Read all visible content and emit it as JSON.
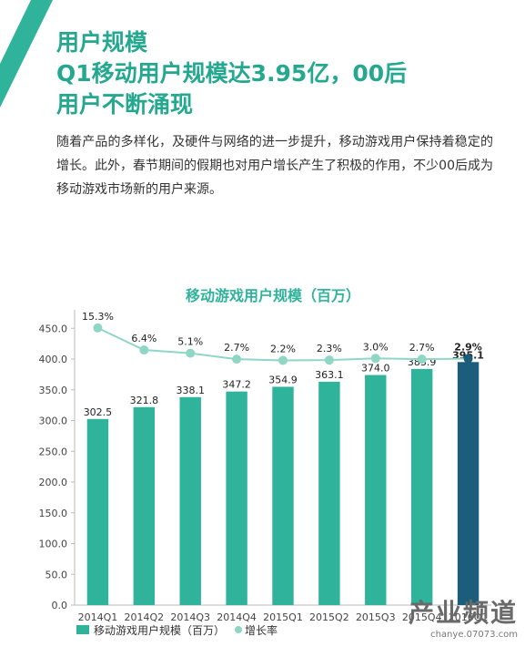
{
  "header": {
    "title_line1": "用户规模",
    "title_line2": "Q1移动用户规模达3.95亿，00后",
    "title_line3": "用户不断涌现"
  },
  "body": {
    "paragraph": "随着产品的多样化，及硬件与网络的进一步提升，移动游戏用户保持着稳定的增长。此外，春节期间的假期也对用户增长产生了积极的作用，不少00后成为移动游戏市场新的用户来源。"
  },
  "watermark": {
    "brand": "产业频道",
    "url": "chanye.07073.com"
  },
  "colors": {
    "accent": "#2fb39b",
    "bar": "#2fb39b",
    "highlight_bar": "#1b5d7a",
    "line": "#8fd6c6"
  },
  "chart_data": {
    "type": "bar",
    "title": "移动游戏用户规模（百万）",
    "categories": [
      "2014Q1",
      "2014Q2",
      "2014Q3",
      "2014Q4",
      "2015Q1",
      "2015Q2",
      "2015Q3",
      "2015Q4",
      "2016Q1"
    ],
    "y_ticks": [
      "0.0",
      "50.0",
      "100.0",
      "150.0",
      "200.0",
      "250.0",
      "300.0",
      "350.0",
      "400.0",
      "450.0"
    ],
    "ylim": [
      0,
      480
    ],
    "series": [
      {
        "name": "移动游戏用户规模（百万）",
        "type": "bar",
        "values": [
          302.5,
          321.8,
          338.1,
          347.2,
          354.9,
          363.1,
          374.0,
          383.9,
          395.1
        ],
        "labels": [
          "302.5",
          "321.8",
          "338.1",
          "347.2",
          "354.9",
          "363.1",
          "374.0",
          "383.9",
          "395.1"
        ]
      },
      {
        "name": "增长率",
        "type": "line",
        "values": [
          15.3,
          6.4,
          5.1,
          2.7,
          2.2,
          2.3,
          3.0,
          2.7,
          2.9
        ],
        "labels": [
          "15.3%",
          "6.4%",
          "5.1%",
          "2.7%",
          "2.2%",
          "2.3%",
          "3.0%",
          "2.7%",
          "2.9%"
        ]
      }
    ],
    "highlight_index": 8,
    "legend_position": "bottom-left"
  }
}
